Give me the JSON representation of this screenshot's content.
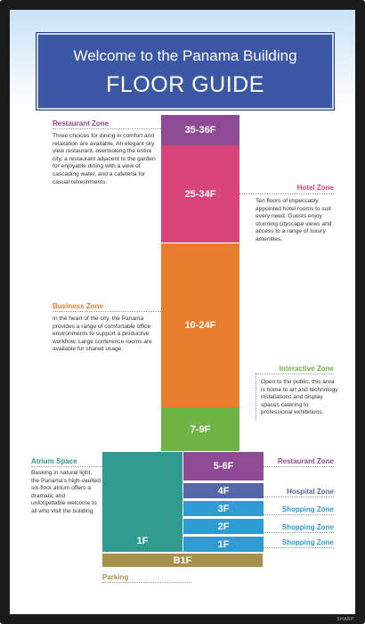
{
  "title": {
    "line1": "Welcome to the Panama Building",
    "line2": "FLOOR GUIDE"
  },
  "floors": {
    "f35_36": "35-36F",
    "f25_34": "25-34F",
    "f10_24": "10-24F",
    "f7_9": "7-9F",
    "f5_6": "5-6F",
    "f4": "4F",
    "f3": "3F",
    "f2": "2F",
    "f1": "1F",
    "atrium_1f": "1F",
    "b1f": "B1F"
  },
  "zones": {
    "restaurant_top": {
      "title": "Restaurant Zone",
      "desc": "Three choices for dining in comfort and relaxation are available. An elegant sky view restaurant, overlooking the entire city, a restaurant adjacent to the garden for enjoyable dining with a view of cascading water, and a cafeteria for casual refreshments."
    },
    "hotel": {
      "title": "Hotel Zone",
      "desc": "Ten floors of impeccably appointed hotel rooms to suit every need. Guests enjoy stunning cityscape views and access to a range of luxury amenities."
    },
    "business": {
      "title": "Business Zone",
      "desc": "In the heart of the city, the Panama provides a range of comfortable office environments to support a productive workflow. Large conference rooms are available for shared usage."
    },
    "interactive": {
      "title": "Interactive Zone",
      "desc": "Open to the public, this area is home to art and technology installations and display spaces catering to professional exhibitions."
    },
    "atrium": {
      "title": "Atrium Space",
      "desc": "Basking in natural light, the Panama's high-vaulted six-floor atrium offers a dramatic and unforgettable welcome to all who visit the building."
    },
    "restaurant_low": {
      "title": "Restaurant Zone"
    },
    "hospital": {
      "title": "Hospital Zone"
    },
    "shopping3": {
      "title": "Shopping Zone"
    },
    "shopping2": {
      "title": "Shopping Zone"
    },
    "shopping1": {
      "title": "Shopping Zone"
    },
    "parking": {
      "title": "Parking"
    }
  },
  "brand": "SHARP",
  "colors": {
    "title_bg": "#3b57a6",
    "restaurant": "#8e4a95",
    "hotel": "#d9457a",
    "business": "#e87d2e",
    "interactive": "#6fb344",
    "atrium": "#2e9a90",
    "hospital": "#5567a8",
    "shopping": "#2e9bd2",
    "parking": "#a7924b"
  }
}
